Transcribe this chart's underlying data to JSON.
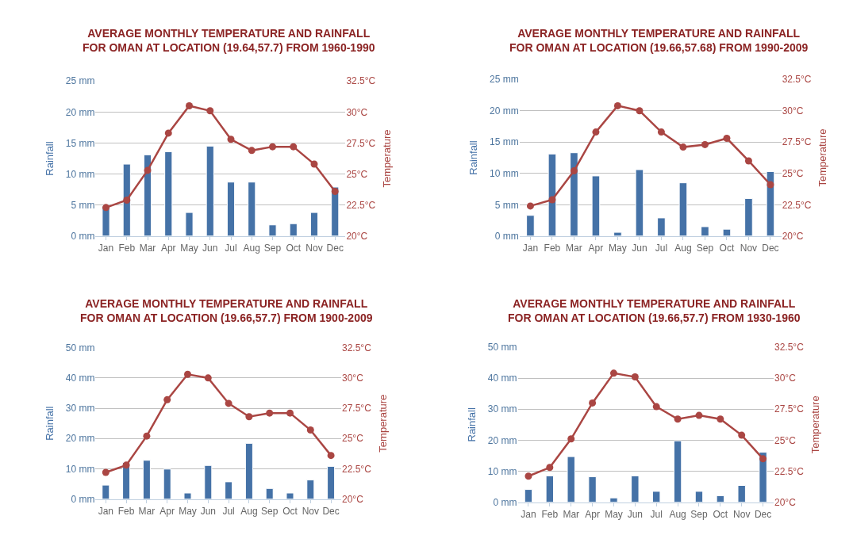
{
  "chart_data": [
    {
      "type": "bar",
      "title": "AVERAGE MONTHLY TEMPERATURE AND RAINFALL\nFOR OMAN AT LOCATION (19.64,57.7) FROM 1960-1990",
      "ylabel": "Rainfall",
      "y2label": "Temperature",
      "categories": [
        "Jan",
        "Feb",
        "Mar",
        "Apr",
        "May",
        "Jun",
        "Jul",
        "Aug",
        "Sep",
        "Oct",
        "Nov",
        "Dec"
      ],
      "series": [
        {
          "color": "#4572a7",
          "values": [
            4.8,
            11.6,
            13.1,
            13.6,
            3.8,
            14.5,
            8.7,
            8.7,
            1.8,
            2.0,
            3.8,
            7.9
          ]
        },
        {
          "type": "line",
          "axis": "y2",
          "color": "#aa4643",
          "marker": "circle",
          "values": [
            22.3,
            22.9,
            25.3,
            28.3,
            30.5,
            30.1,
            27.8,
            26.9,
            27.2,
            27.2,
            25.8,
            23.6
          ]
        }
      ],
      "ylim": [
        0,
        25
      ],
      "yticks": [
        {
          "value": 0,
          "label": "0 mm"
        },
        {
          "value": 5,
          "label": "5 mm"
        },
        {
          "value": 10,
          "label": "10 mm"
        },
        {
          "value": 15,
          "label": "15 mm"
        },
        {
          "value": 20,
          "label": "20 mm"
        },
        {
          "value": 25,
          "label": "25 mm"
        }
      ],
      "y2lim": [
        20,
        32.5
      ],
      "y2ticks": [
        {
          "value": 20,
          "label": "20°C"
        },
        {
          "value": 22.5,
          "label": "22.5°C"
        },
        {
          "value": 25,
          "label": "25°C"
        },
        {
          "value": 27.5,
          "label": "27.5°C"
        },
        {
          "value": 30,
          "label": "30°C"
        },
        {
          "value": 32.5,
          "label": "32.5°C"
        }
      ],
      "grid": "y"
    },
    {
      "type": "bar",
      "title": "AVERAGE MONTHLY TEMPERATURE AND RAINFALL\nFOR OMAN AT LOCATION (19.66,57.68) FROM 1990-2009",
      "ylabel": "Rainfall",
      "y2label": "Temperature",
      "categories": [
        "Jan",
        "Feb",
        "Mar",
        "Apr",
        "May",
        "Jun",
        "Jul",
        "Aug",
        "Sep",
        "Oct",
        "Nov",
        "Dec"
      ],
      "series": [
        {
          "color": "#4572a7",
          "values": [
            3.3,
            13.1,
            13.3,
            9.6,
            0.6,
            10.6,
            2.9,
            8.5,
            1.5,
            1.1,
            6.0,
            10.3
          ]
        },
        {
          "type": "line",
          "axis": "y2",
          "color": "#aa4643",
          "marker": "circle",
          "values": [
            22.4,
            22.9,
            25.2,
            28.3,
            30.4,
            30.0,
            28.3,
            27.1,
            27.3,
            27.8,
            26.0,
            24.1
          ]
        }
      ],
      "ylim": [
        0,
        25
      ],
      "yticks": [
        {
          "value": 0,
          "label": "0 mm"
        },
        {
          "value": 5,
          "label": "5 mm"
        },
        {
          "value": 10,
          "label": "10 mm"
        },
        {
          "value": 15,
          "label": "15 mm"
        },
        {
          "value": 20,
          "label": "20 mm"
        },
        {
          "value": 25,
          "label": "25 mm"
        }
      ],
      "y2lim": [
        20,
        32.5
      ],
      "y2ticks": [
        {
          "value": 20,
          "label": "20°C"
        },
        {
          "value": 22.5,
          "label": "22.5°C"
        },
        {
          "value": 25,
          "label": "25°C"
        },
        {
          "value": 27.5,
          "label": "27.5°C"
        },
        {
          "value": 30,
          "label": "30°C"
        },
        {
          "value": 32.5,
          "label": "32.5°C"
        }
      ],
      "grid": "y"
    },
    {
      "type": "bar",
      "title": "AVERAGE MONTHLY TEMPERATURE AND RAINFALL\nFOR OMAN AT LOCATION (19.66,57.7) FROM 1900-2009",
      "ylabel": "Rainfall",
      "y2label": "Temperature",
      "categories": [
        "Jan",
        "Feb",
        "Mar",
        "Apr",
        "May",
        "Jun",
        "Jul",
        "Aug",
        "Sep",
        "Oct",
        "Nov",
        "Dec"
      ],
      "series": [
        {
          "color": "#4572a7",
          "values": [
            4.6,
            12.1,
            12.8,
            9.9,
            2.0,
            11.1,
            5.7,
            18.4,
            3.5,
            2.0,
            6.3,
            10.8
          ]
        },
        {
          "type": "line",
          "axis": "y2",
          "color": "#aa4643",
          "marker": "circle",
          "values": [
            22.2,
            22.8,
            25.2,
            28.2,
            30.3,
            30.0,
            27.9,
            26.8,
            27.1,
            27.1,
            25.7,
            23.6
          ]
        }
      ],
      "ylim": [
        0,
        50
      ],
      "yticks": [
        {
          "value": 0,
          "label": "0 mm"
        },
        {
          "value": 10,
          "label": "10 mm"
        },
        {
          "value": 20,
          "label": "20 mm"
        },
        {
          "value": 30,
          "label": "30 mm"
        },
        {
          "value": 40,
          "label": "40 mm"
        },
        {
          "value": 50,
          "label": "50 mm"
        }
      ],
      "y2lim": [
        20,
        32.5
      ],
      "y2ticks": [
        {
          "value": 20,
          "label": "20°C"
        },
        {
          "value": 22.5,
          "label": "22.5°C"
        },
        {
          "value": 25,
          "label": "25°C"
        },
        {
          "value": 27.5,
          "label": "27.5°C"
        },
        {
          "value": 30,
          "label": "30°C"
        },
        {
          "value": 32.5,
          "label": "32.5°C"
        }
      ],
      "grid": "y"
    },
    {
      "type": "bar",
      "title": "AVERAGE MONTHLY TEMPERATURE AND RAINFALL\nFOR OMAN AT LOCATION (19.66,57.7) FROM 1930-1960",
      "ylabel": "Rainfall",
      "y2label": "Temperature",
      "categories": [
        "Jan",
        "Feb",
        "Mar",
        "Apr",
        "May",
        "Jun",
        "Jul",
        "Aug",
        "Sep",
        "Oct",
        "Nov",
        "Dec"
      ],
      "series": [
        {
          "color": "#4572a7",
          "values": [
            4.1,
            8.5,
            14.7,
            8.2,
            1.4,
            8.5,
            3.5,
            19.8,
            3.5,
            2.1,
            5.4,
            16.1
          ]
        },
        {
          "type": "line",
          "axis": "y2",
          "color": "#aa4643",
          "marker": "circle",
          "values": [
            22.1,
            22.8,
            25.1,
            28.0,
            30.4,
            30.1,
            27.7,
            26.7,
            27.0,
            26.7,
            25.4,
            23.5
          ]
        }
      ],
      "ylim": [
        0,
        50
      ],
      "yticks": [
        {
          "value": 0,
          "label": "0 mm"
        },
        {
          "value": 10,
          "label": "10 mm"
        },
        {
          "value": 20,
          "label": "20 mm"
        },
        {
          "value": 30,
          "label": "30 mm"
        },
        {
          "value": 40,
          "label": "40 mm"
        },
        {
          "value": 50,
          "label": "50 mm"
        }
      ],
      "y2lim": [
        20,
        32.5
      ],
      "y2ticks": [
        {
          "value": 20,
          "label": "20°C"
        },
        {
          "value": 22.5,
          "label": "22.5°C"
        },
        {
          "value": 25,
          "label": "25°C"
        },
        {
          "value": 27.5,
          "label": "27.5°C"
        },
        {
          "value": 30,
          "label": "30°C"
        },
        {
          "value": 32.5,
          "label": "32.5°C"
        }
      ],
      "grid": "y"
    }
  ]
}
